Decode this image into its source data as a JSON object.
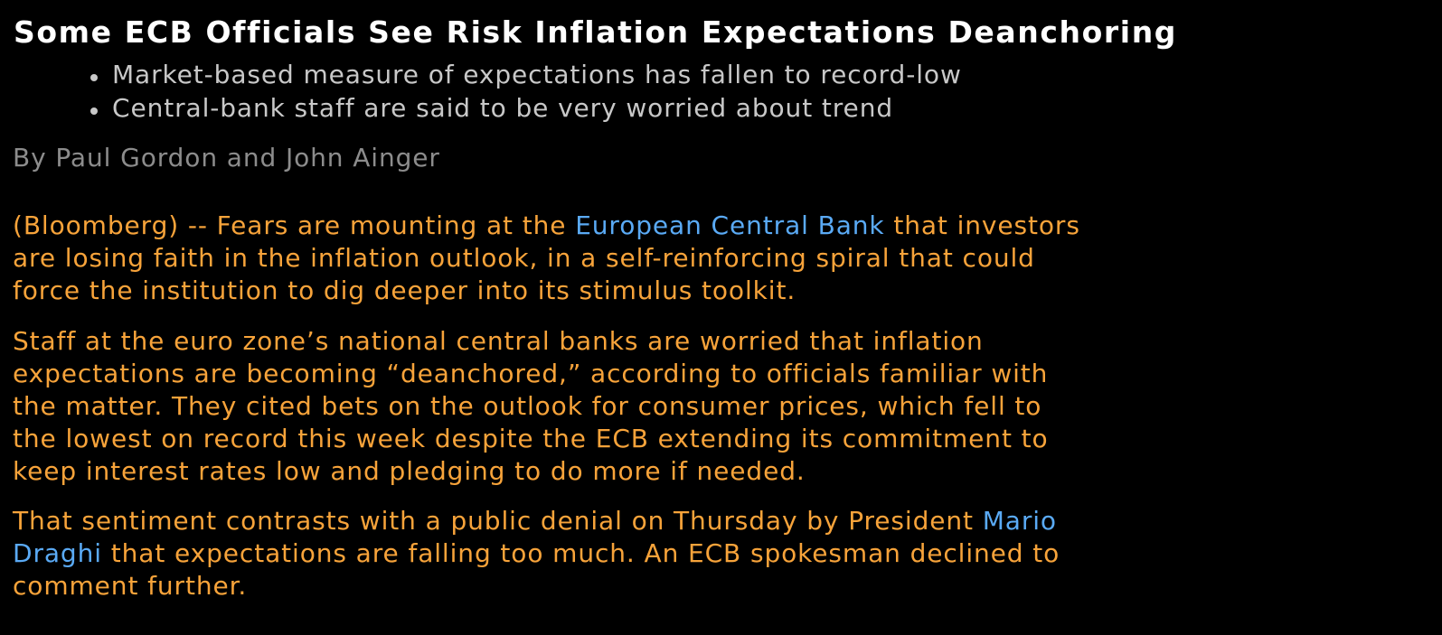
{
  "article": {
    "headline": "Some ECB Officials See Risk Inflation Expectations Deanchoring",
    "bullets": [
      "Market-based measure of expectations has fallen to record-low",
      "Central-bank staff are said to be very worried about trend"
    ],
    "byline": "By Paul Gordon and John Ainger",
    "paragraphs": [
      {
        "lines": [
          {
            "pre": "(Bloomberg) -- Fears are mounting at the ",
            "link": "European Central Bank",
            "post": " that investors"
          },
          {
            "text": "are losing faith in the inflation outlook, in a self-reinforcing spiral that could"
          },
          {
            "text": "force the institution to dig deeper into its stimulus toolkit."
          }
        ]
      },
      {
        "lines": [
          {
            "text": "Staff at the euro zone’s national central banks are worried that inflation"
          },
          {
            "text": "expectations are becoming “deanchored,” according to officials familiar with"
          },
          {
            "text": "the matter. They cited bets on the outlook for consumer prices, which fell to"
          },
          {
            "text": "the lowest on record this week despite the ECB extending its commitment to"
          },
          {
            "text": "keep interest rates low and pledging to do more if needed."
          }
        ]
      },
      {
        "lines": [
          {
            "pre": "That sentiment contrasts with a public denial on Thursday by President ",
            "link": "Mario"
          },
          {
            "link": "Draghi",
            "post": " that expectations are falling too much. An ECB spokesman declined to"
          },
          {
            "text": "comment further."
          }
        ]
      }
    ]
  },
  "colors": {
    "background": "#000000",
    "headline": "#ffffff",
    "bullets": "#c8c8c8",
    "byline": "#8c8c8c",
    "body": "#f7a33a",
    "link": "#5aaaf5"
  }
}
